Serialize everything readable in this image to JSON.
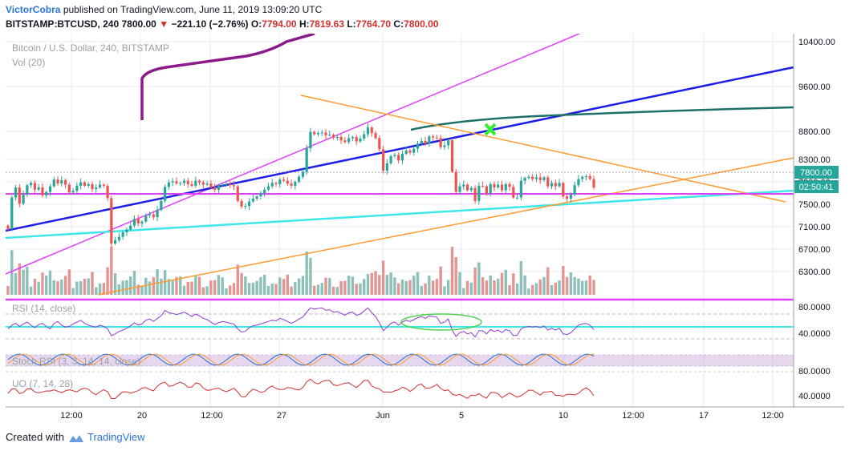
{
  "header": {
    "author": "VictorCobra",
    "published_text": "published on TradingView.com, June 11, 2019 13:09:20 UTC",
    "symbol": "BITSTAMP:BTCUSD, 240",
    "price": "7800.00",
    "change": "−221.10 (−2.76%)",
    "o_label": "O:",
    "o_value": "7794.00",
    "h_label": "H:",
    "h_value": "7819.63",
    "l_label": "L:",
    "l_value": "7764.70",
    "c_label": "C:",
    "c_value": "7800.00"
  },
  "footer": {
    "created_with": "Created with",
    "brand": "TradingView"
  },
  "colors": {
    "up": "#26a69a",
    "down": "#ef5350",
    "vol_up": "#7fb9b0",
    "vol_down": "#e08a86",
    "magenta": "#e040fb",
    "blue": "#1e1ee6",
    "cyan": "#3ee8e8",
    "orange": "#ff9a2e",
    "teal": "#1d6f6a",
    "purple": "#8b1a8b",
    "grid": "#eceaf5",
    "panel_band": "#7b1fa2"
  },
  "chart_data": {
    "type": "candlestick",
    "title": "Bitcoin / U.S. Dollar, 240, BITSTAMP",
    "volume_label": "Vol (20)",
    "ylim": [
      6000,
      10500
    ],
    "y_ticks": [
      "10400.00",
      "9600.00",
      "8800.00",
      "8300.00",
      "7900.00",
      "7500.00",
      "7100.00",
      "6700.00",
      "6300.00"
    ],
    "x_ticks": [
      "12:00",
      "20",
      "12:00",
      "27",
      "Jun",
      "5",
      "10",
      "12:00",
      "17",
      "12:00"
    ],
    "last_price_label": "7800.00",
    "countdown_label": "02:50:41",
    "candles": [
      7060,
      7620,
      7800,
      7510,
      7670,
      7840,
      7880,
      7760,
      7800,
      7660,
      7720,
      7820,
      7940,
      7870,
      7930,
      7850,
      7710,
      7740,
      7830,
      7890,
      7830,
      7860,
      7770,
      7800,
      7850,
      7830,
      7610,
      6800,
      6860,
      6920,
      7000,
      7050,
      7120,
      7240,
      7160,
      7190,
      7300,
      7320,
      7270,
      7400,
      7560,
      7810,
      7890,
      7910,
      7870,
      7880,
      7920,
      7860,
      7830,
      7920,
      7890,
      7850,
      7870,
      7800,
      7760,
      7840,
      7850,
      7860,
      7840,
      7820,
      7560,
      7460,
      7470,
      7550,
      7600,
      7640,
      7700,
      7760,
      7820,
      7880,
      7860,
      7940,
      7920,
      7870,
      7830,
      7900,
      7990,
      8080,
      8500,
      8790,
      8750,
      8770,
      8780,
      8730,
      8740,
      8690,
      8700,
      8640,
      8610,
      8680,
      8700,
      8620,
      8670,
      8750,
      8870,
      8770,
      8680,
      8480,
      8100,
      8230,
      8360,
      8380,
      8280,
      8400,
      8460,
      8420,
      8490,
      8580,
      8630,
      8580,
      8710,
      8690,
      8680,
      8520,
      8550,
      8640,
      8080,
      7720,
      7820,
      7850,
      7750,
      7790,
      7560,
      7830,
      7820,
      7690,
      7860,
      7800,
      7850,
      7750,
      7860,
      7810,
      7620,
      7620,
      7920,
      7970,
      7990,
      7950,
      7980,
      7930,
      7980,
      7820,
      7880,
      7820,
      7880,
      7640,
      7600,
      7670,
      7840,
      7950,
      7990,
      8000,
      7950,
      7800
    ],
    "rsi": {
      "label": "RSI (14, close)",
      "ylim": [
        20,
        100
      ],
      "y_ticks": [
        "80.0000",
        "40.0000"
      ],
      "values": [
        46,
        52,
        55,
        50,
        54,
        57,
        52,
        48,
        53,
        55,
        50,
        46,
        55,
        58,
        52,
        49,
        50,
        54,
        57,
        60,
        55,
        52,
        50,
        49,
        52,
        50,
        46,
        35,
        38,
        42,
        44,
        47,
        51,
        56,
        52,
        54,
        60,
        62,
        58,
        63,
        67,
        76,
        72,
        71,
        69,
        71,
        73,
        70,
        66,
        70,
        67,
        63,
        61,
        57,
        53,
        56,
        58,
        57,
        55,
        54,
        46,
        41,
        42,
        48,
        51,
        52,
        54,
        56,
        58,
        60,
        59,
        63,
        61,
        58,
        55,
        58,
        62,
        65,
        73,
        80,
        78,
        79,
        80,
        76,
        77,
        73,
        74,
        71,
        68,
        72,
        73,
        68,
        70,
        75,
        80,
        72,
        66,
        56,
        43,
        49,
        55,
        57,
        52,
        57,
        60,
        58,
        61,
        64,
        66,
        63,
        67,
        66,
        65,
        55,
        57,
        62,
        44,
        34,
        40,
        42,
        38,
        40,
        33,
        43,
        43,
        38,
        45,
        42,
        44,
        40,
        45,
        43,
        35,
        36,
        46,
        49,
        50,
        49,
        50,
        48,
        51,
        44,
        47,
        44,
        47,
        38,
        37,
        40,
        46,
        52,
        54,
        55,
        52,
        45
      ]
    },
    "stoch_rsi": {
      "label": "Stoch RSI (3, 3, 14, 14, close)"
    },
    "oscillator": {
      "label": "UO (7, 14, 28)",
      "y_ticks": [
        "80.0000",
        "40.0000"
      ]
    }
  }
}
